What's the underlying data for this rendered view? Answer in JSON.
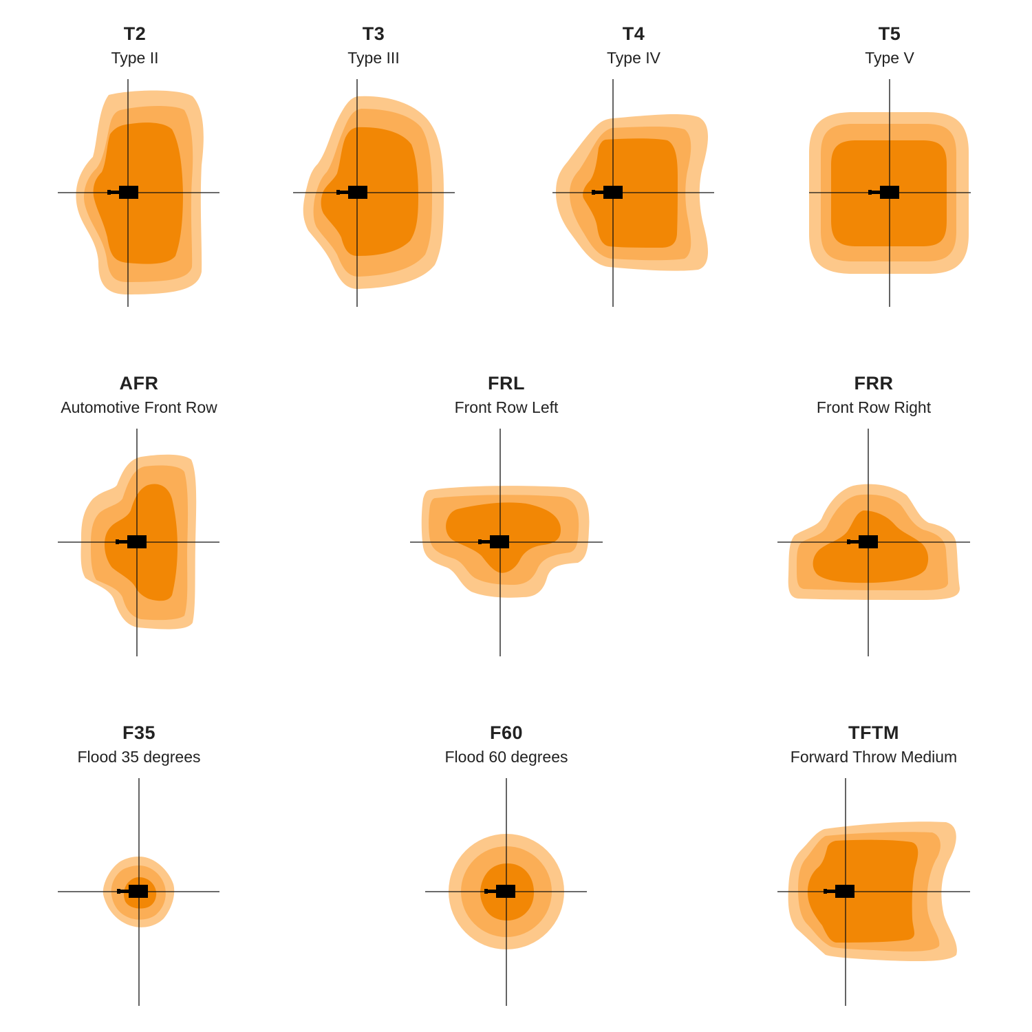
{
  "colors": {
    "outer": "#FDC88A",
    "middle": "#FBAE56",
    "inner": "#F28705",
    "axis": "#111111",
    "fixture": "#000000",
    "text": "#222222"
  },
  "patterns": [
    {
      "code": "T2",
      "name": "Type II"
    },
    {
      "code": "T3",
      "name": "Type III"
    },
    {
      "code": "T4",
      "name": "Type IV"
    },
    {
      "code": "T5",
      "name": "Type V"
    },
    {
      "code": "AFR",
      "name": "Automotive Front Row"
    },
    {
      "code": "FRL",
      "name": "Front Row Left"
    },
    {
      "code": "FRR",
      "name": "Front Row Right"
    },
    {
      "code": "F35",
      "name": "Flood 35 degrees"
    },
    {
      "code": "F60",
      "name": "Flood 60 degrees"
    },
    {
      "code": "TFTM",
      "name": "Forward Throw Medium"
    }
  ]
}
